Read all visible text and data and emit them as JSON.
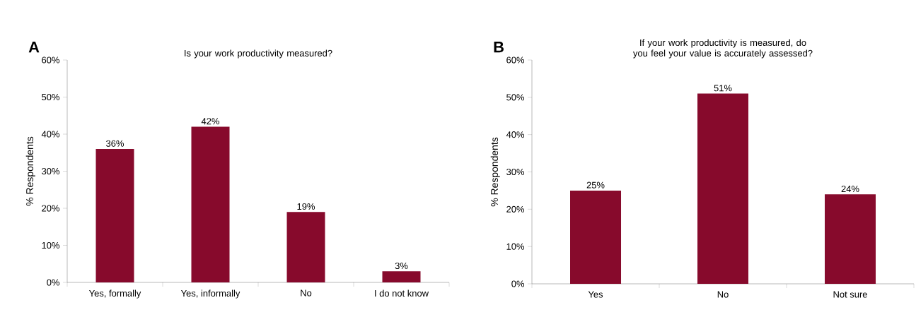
{
  "chart_data": [
    {
      "type": "bar",
      "title": "Is your work productivity measured?",
      "ylabel": "% Respondents",
      "annotations": [
        "A"
      ],
      "categories": [
        "Yes, formally",
        "Yes, informally",
        "No",
        "I do not know"
      ],
      "values": [
        36,
        42,
        19,
        3
      ],
      "value_labels": [
        "36%",
        "42%",
        "19%",
        "3%"
      ],
      "color": "#870a2c",
      "ylim": [
        0,
        60
      ],
      "yticks": [
        {
          "value": 0,
          "label": "0%"
        },
        {
          "value": 10,
          "label": "10%"
        },
        {
          "value": 20,
          "label": "20%"
        },
        {
          "value": 30,
          "label": "30%"
        },
        {
          "value": 40,
          "label": "40%"
        },
        {
          "value": 50,
          "label": "50%"
        },
        {
          "value": 60,
          "label": "60%"
        }
      ]
    },
    {
      "type": "bar",
      "title": "If your work productivity is measured, do you feel your value is accurately assessed?",
      "ylabel": "% Respondents",
      "annotations": [
        "B"
      ],
      "categories": [
        "Yes",
        "No",
        "Not sure"
      ],
      "values": [
        25,
        51,
        24
      ],
      "value_labels": [
        "25%",
        "51%",
        "24%"
      ],
      "color": "#870a2c",
      "ylim": [
        0,
        60
      ],
      "yticks": [
        {
          "value": 0,
          "label": "0%"
        },
        {
          "value": 10,
          "label": "10%"
        },
        {
          "value": 20,
          "label": "20%"
        },
        {
          "value": 30,
          "label": "30%"
        },
        {
          "value": 40,
          "label": "40%"
        },
        {
          "value": 50,
          "label": "50%"
        },
        {
          "value": 60,
          "label": "60%"
        }
      ]
    }
  ]
}
